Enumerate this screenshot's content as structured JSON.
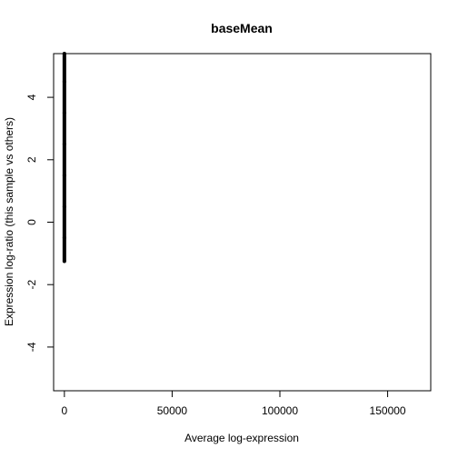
{
  "chart_data": {
    "type": "scatter",
    "title": "baseMean",
    "xlabel": "Average log-expression",
    "ylabel": "Expression log-ratio (this sample vs others)",
    "xlim": [
      -5000,
      170000
    ],
    "ylim": [
      -5.4,
      5.4
    ],
    "x_ticks": [
      {
        "value": 0,
        "label": "0"
      },
      {
        "value": 50000,
        "label": "50000"
      },
      {
        "value": 100000,
        "label": "100000"
      },
      {
        "value": 150000,
        "label": "150000"
      }
    ],
    "y_ticks": [
      {
        "value": -4,
        "label": "-4"
      },
      {
        "value": -2,
        "label": "-2"
      },
      {
        "value": 0,
        "label": "0"
      },
      {
        "value": 2,
        "label": "2"
      },
      {
        "value": 4,
        "label": "4"
      }
    ],
    "series": [
      {
        "color": "#000000",
        "points": [
          {
            "x": 0,
            "y": -1.25
          },
          {
            "x": 0,
            "y": -0.5
          },
          {
            "x": 0,
            "y": 0.5
          },
          {
            "x": 0,
            "y": 1.5
          },
          {
            "x": 0,
            "y": 2.5
          },
          {
            "x": 0,
            "y": 3.5
          },
          {
            "x": 0,
            "y": 4.5
          },
          {
            "x": 0,
            "y": 5.4
          }
        ]
      }
    ]
  }
}
